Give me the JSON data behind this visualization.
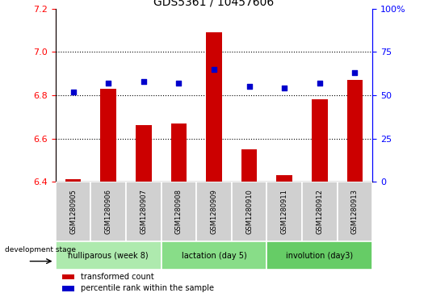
{
  "title": "GDS5361 / 10457606",
  "samples": [
    "GSM1280905",
    "GSM1280906",
    "GSM1280907",
    "GSM1280908",
    "GSM1280909",
    "GSM1280910",
    "GSM1280911",
    "GSM1280912",
    "GSM1280913"
  ],
  "bar_values": [
    6.41,
    6.83,
    6.66,
    6.67,
    7.09,
    6.55,
    6.43,
    6.78,
    6.87
  ],
  "percentile_values": [
    52,
    57,
    58,
    57,
    65,
    55,
    54,
    57,
    63
  ],
  "ylim_left": [
    6.4,
    7.2
  ],
  "ylim_right": [
    0,
    100
  ],
  "yticks_left": [
    6.4,
    6.6,
    6.8,
    7.0,
    7.2
  ],
  "yticks_right": [
    0,
    25,
    50,
    75,
    100
  ],
  "bar_color": "#cc0000",
  "dot_color": "#0000cc",
  "bar_bottom": 6.4,
  "groups": [
    {
      "label": "nulliparous (week 8)",
      "start": 0,
      "end": 3
    },
    {
      "label": "lactation (day 5)",
      "start": 3,
      "end": 6
    },
    {
      "label": "involution (day3)",
      "start": 6,
      "end": 9
    }
  ],
  "group_colors": [
    "#aeeaae",
    "#88dd88",
    "#66cc66"
  ],
  "legend_bar_label": "transformed count",
  "legend_dot_label": "percentile rank within the sample",
  "dev_stage_label": "development stage",
  "title_fontsize": 10,
  "tick_fontsize": 7,
  "label_fontsize": 7.5
}
